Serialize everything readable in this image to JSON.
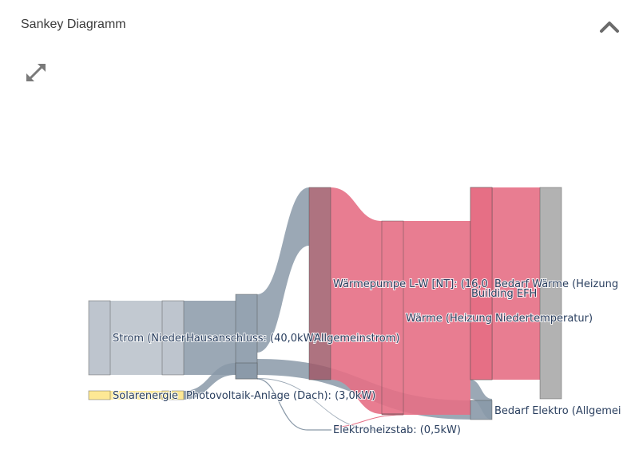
{
  "panel": {
    "title": "Sankey Diagramm",
    "collapse_icon": "chevron-up-icon",
    "expand_icon": "expand-arrows-icon"
  },
  "chart_data": {
    "type": "sankey",
    "units": "kW",
    "nodes": [
      {
        "id": "strom",
        "label": "Strom (Nieder",
        "color": "#b7bfc9"
      },
      {
        "id": "solar",
        "label": "Solarenergie",
        "color": "#fde68a"
      },
      {
        "id": "strom2",
        "label": "",
        "color": "#b7bfc9"
      },
      {
        "id": "solar2",
        "label": "",
        "color": "#fde68a"
      },
      {
        "id": "hausanschluss",
        "label": "Hausanschluss: (40,0kW)",
        "color": "#8a99a8"
      },
      {
        "id": "pv",
        "label": "Photovoltaik-Anlage (Dach): (3,0kW)",
        "color": "#8a99a8"
      },
      {
        "id": "allgemeinstrom",
        "label": "Allgemeinstrom)",
        "color": "#a05a6a"
      },
      {
        "id": "waermepumpe",
        "label": "Wärmepumpe L-W [NT]: (16,0",
        "color": "#e66f85"
      },
      {
        "id": "elektroheizstab",
        "label": "Elektroheizstab: (0,5kW)",
        "color": "#e66f85"
      },
      {
        "id": "waerme",
        "label": "Wärme (Heizung Niedertemperatur)",
        "color": "#e66f85"
      },
      {
        "id": "building",
        "label": "Building EFH",
        "color": "#e66f85"
      },
      {
        "id": "bedarf_waerme",
        "label": "Bedarf Wärme (Heizung",
        "color": "#aaaaaa"
      },
      {
        "id": "bedarf_elektro",
        "label": "Bedarf Elektro (Allgemei",
        "color": "#8a99a8"
      }
    ],
    "links": [
      {
        "source": "strom",
        "target": "strom2",
        "color": "#b7bfc9"
      },
      {
        "source": "solar",
        "target": "solar2",
        "color": "#fde68a"
      },
      {
        "source": "strom2",
        "target": "hausanschluss",
        "color": "#8a99a8"
      },
      {
        "source": "solar2",
        "target": "pv",
        "color": "#8a99a8"
      },
      {
        "source": "hausanschluss",
        "target": "allgemeinstrom",
        "color": "#8a99a8"
      },
      {
        "source": "hausanschluss",
        "target": "bedarf_elektro",
        "color": "#8a99a8"
      },
      {
        "source": "hausanschluss",
        "target": "elektroheizstab",
        "color": "#8a99a8"
      },
      {
        "source": "allgemeinstrom",
        "target": "waermepumpe",
        "color": "#e66f85"
      },
      {
        "source": "waermepumpe",
        "target": "waerme",
        "color": "#e66f85"
      },
      {
        "source": "elektroheizstab",
        "target": "waerme",
        "color": "#e66f85"
      },
      {
        "source": "waerme",
        "target": "building",
        "color": "#e66f85"
      },
      {
        "source": "building",
        "target": "bedarf_waerme",
        "color": "#e66f85"
      },
      {
        "source": "building",
        "target": "bedarf_elektro",
        "color": "#8a99a8"
      }
    ]
  }
}
